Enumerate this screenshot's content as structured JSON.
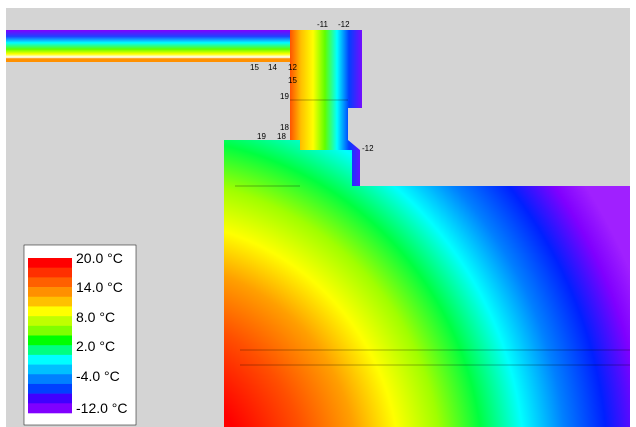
{
  "legend": {
    "labels": [
      "20.0 °C",
      "14.0 °C",
      "8.0 °C",
      "2.0 °C",
      "-4.0 °C",
      "-12.0 °C"
    ]
  },
  "isotherm_labels": [
    "-11",
    "-12",
    "15",
    "14",
    "12",
    "15",
    "19",
    "18",
    "19",
    "18",
    "-12"
  ]
}
